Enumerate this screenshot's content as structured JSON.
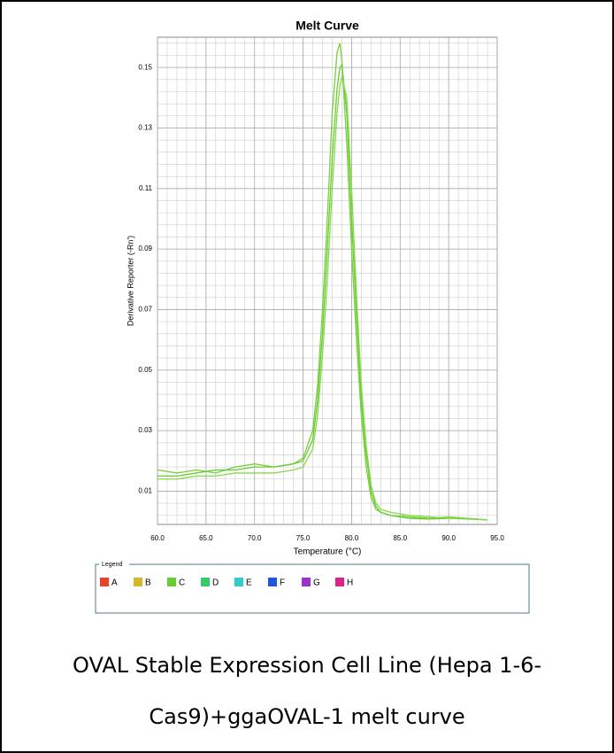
{
  "chart_data": {
    "type": "line",
    "title": "Melt Curve",
    "x_label": "Temperature (°C)",
    "y_label": "Derivative Reporter (-Rn')",
    "x": [
      60,
      62,
      64,
      66,
      68,
      70,
      72,
      74,
      75,
      76,
      76.5,
      77,
      77.5,
      78,
      78.5,
      78.8,
      79,
      79.5,
      80,
      80.5,
      81,
      81.5,
      82,
      82.5,
      83,
      84,
      86,
      88,
      90,
      92,
      94
    ],
    "series": [
      {
        "color": "#77d13a",
        "values": [
          0.017,
          0.016,
          0.017,
          0.016,
          0.018,
          0.019,
          0.018,
          0.019,
          0.021,
          0.03,
          0.045,
          0.07,
          0.1,
          0.135,
          0.155,
          0.158,
          0.152,
          0.125,
          0.09,
          0.06,
          0.035,
          0.018,
          0.008,
          0.004,
          0.003,
          0.002,
          0.0015,
          0.001,
          0.0015,
          0.001,
          0.0005
        ]
      },
      {
        "color": "#66cc33",
        "values": [
          0.015,
          0.015,
          0.016,
          0.017,
          0.017,
          0.018,
          0.018,
          0.019,
          0.02,
          0.027,
          0.04,
          0.062,
          0.09,
          0.12,
          0.143,
          0.15,
          0.151,
          0.135,
          0.1,
          0.068,
          0.04,
          0.022,
          0.01,
          0.005,
          0.003,
          0.002,
          0.001,
          0.0008,
          0.001,
          0.0008,
          0.0005
        ]
      },
      {
        "color": "#88d84a",
        "values": [
          0.014,
          0.014,
          0.015,
          0.015,
          0.016,
          0.016,
          0.016,
          0.017,
          0.018,
          0.024,
          0.035,
          0.055,
          0.08,
          0.11,
          0.135,
          0.144,
          0.147,
          0.14,
          0.11,
          0.075,
          0.045,
          0.025,
          0.012,
          0.006,
          0.004,
          0.003,
          0.002,
          0.0015,
          0.001,
          0.001,
          0.0005
        ]
      }
    ],
    "xlim": [
      60,
      95
    ],
    "ylim": [
      -0.001,
      0.16
    ],
    "xticks": [
      {
        "value": 60,
        "label": "60.0"
      },
      {
        "value": 65,
        "label": "65.0"
      },
      {
        "value": 70,
        "label": "70.0"
      },
      {
        "value": 75,
        "label": "75.0"
      },
      {
        "value": 80,
        "label": "80.0"
      },
      {
        "value": 85,
        "label": "85.0"
      },
      {
        "value": 90,
        "label": "90.0"
      },
      {
        "value": 95,
        "label": "95.0"
      }
    ],
    "yticks": [
      0.01,
      0.03,
      0.05,
      0.07,
      0.09,
      0.11,
      0.13,
      0.15
    ],
    "grid": true,
    "legend_title": "Legend",
    "legend": [
      {
        "label": "A",
        "color": "#e8432a"
      },
      {
        "label": "B",
        "color": "#d4b82c"
      },
      {
        "label": "C",
        "color": "#66cc33"
      },
      {
        "label": "D",
        "color": "#33cc66"
      },
      {
        "label": "E",
        "color": "#33cccc"
      },
      {
        "label": "F",
        "color": "#2255dd"
      },
      {
        "label": "G",
        "color": "#9933cc"
      },
      {
        "label": "H",
        "color": "#dd2288"
      }
    ]
  },
  "caption": [
    "OVAL Stable Expression Cell Line (Hepa 1-6-",
    "Cas9)+ggaOVAL-1 melt curve"
  ]
}
